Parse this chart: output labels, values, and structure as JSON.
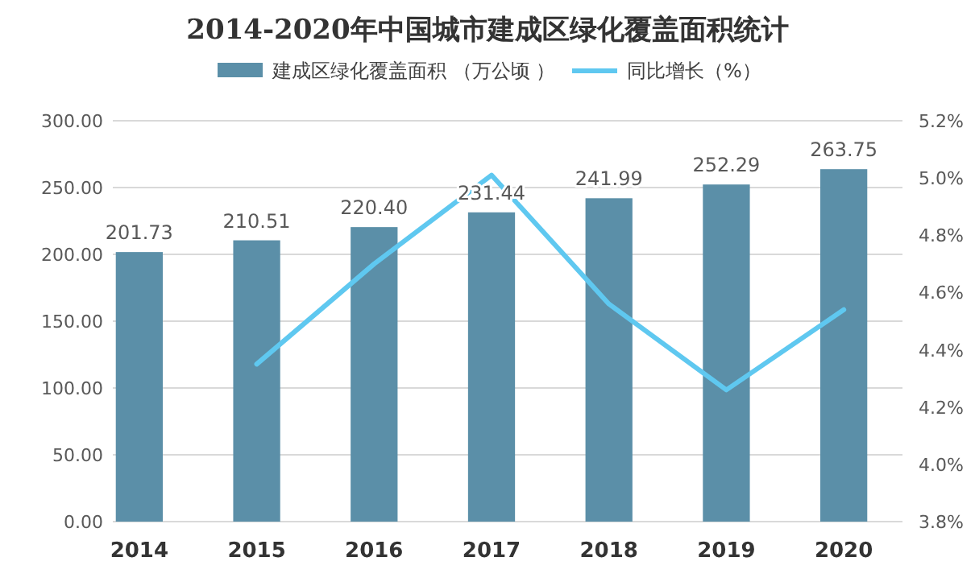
{
  "chart_data": {
    "type": "bar",
    "title": "2014-2020年中国城市建成区绿化覆盖面积统计",
    "categories": [
      "2014",
      "2015",
      "2016",
      "2017",
      "2018",
      "2019",
      "2020"
    ],
    "series": [
      {
        "name": "建成区绿化覆盖面积 （万公顷 ）",
        "color": "#5b8fa8",
        "values": [
          201.73,
          210.51,
          220.4,
          231.44,
          241.99,
          252.29,
          263.75
        ],
        "value_labels": [
          "201.73",
          "210.51",
          "220.40",
          "231.44",
          "241.99",
          "252.29",
          "263.75"
        ]
      },
      {
        "name": "同比增长（%）",
        "type": "line",
        "axis": "y2",
        "color": "#5fc8f0",
        "values": [
          null,
          4.35,
          4.7,
          5.01,
          4.56,
          4.26,
          4.54
        ]
      }
    ],
    "ylim": [
      0,
      300
    ],
    "yticks": [
      {
        "value": 0,
        "label": "0.00"
      },
      {
        "value": 50,
        "label": "50.00"
      },
      {
        "value": 100,
        "label": "100.00"
      },
      {
        "value": 150,
        "label": "150.00"
      },
      {
        "value": 200,
        "label": "200.00"
      },
      {
        "value": 250,
        "label": "250.00"
      },
      {
        "value": 300,
        "label": "300.00"
      }
    ],
    "y2lim": [
      3.8,
      5.2
    ],
    "y2ticks": [
      {
        "value": 3.8,
        "label": "3.8%"
      },
      {
        "value": 4.0,
        "label": "4.0%"
      },
      {
        "value": 4.2,
        "label": "4.2%"
      },
      {
        "value": 4.4,
        "label": "4.4%"
      },
      {
        "value": 4.6,
        "label": "4.6%"
      },
      {
        "value": 4.8,
        "label": "4.8%"
      },
      {
        "value": 5.0,
        "label": "5.0%"
      },
      {
        "value": 5.2,
        "label": "5.2%"
      }
    ],
    "grid": "y",
    "legend": "top"
  }
}
